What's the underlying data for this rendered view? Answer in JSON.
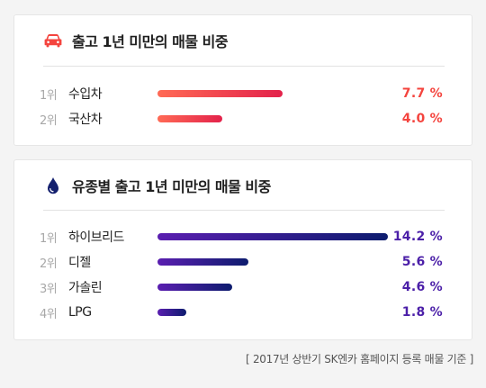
{
  "import_card": {
    "title": "출고 1년 미만의 매물 비중",
    "icon": "car-icon",
    "accent": "#f4443e",
    "rows": [
      {
        "rank": "1위",
        "label": "수입차",
        "value": 7.7,
        "pct": "7.7 %"
      },
      {
        "rank": "2위",
        "label": "국산차",
        "value": 4.0,
        "pct": "4.0 %"
      }
    ]
  },
  "fuel_card": {
    "title": "유종별 출고 1년 미만의 매물 비중",
    "icon": "fuel-drop-icon",
    "accent": "#4b1fa8",
    "rows": [
      {
        "rank": "1위",
        "label": "하이브리드",
        "value": 14.2,
        "pct": "14.2 %"
      },
      {
        "rank": "2위",
        "label": "디젤",
        "value": 5.6,
        "pct": "5.6 %"
      },
      {
        "rank": "3위",
        "label": "가솔린",
        "value": 4.6,
        "pct": "4.6 %"
      },
      {
        "rank": "4위",
        "label": "LPG",
        "value": 1.8,
        "pct": "1.8 %"
      }
    ]
  },
  "footnote": "[ 2017년 상반기 SK엔카 홈페이지 등록 매물 기준 ]"
}
